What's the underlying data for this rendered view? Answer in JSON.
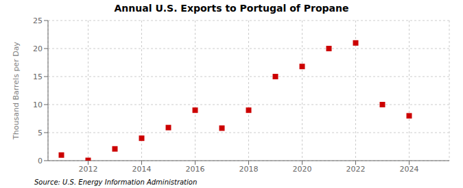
{
  "chart_data": {
    "type": "scatter",
    "title": "Annual U.S. Exports to Portugal of Propane",
    "ylabel": "Thousand Barrels per Day",
    "annotation": "Source: U.S. Energy Information Administration",
    "x": [
      2011,
      2012,
      2013,
      2014,
      2015,
      2016,
      2017,
      2018,
      2019,
      2020,
      2021,
      2022,
      2023,
      2024
    ],
    "values": [
      1.0,
      0.05,
      2.1,
      4.0,
      5.9,
      9.0,
      5.8,
      9.0,
      15.0,
      16.8,
      20.0,
      21.0,
      10.0,
      8.0
    ],
    "color": "#cc0000",
    "marker": "square",
    "xlim": [
      2010.5,
      2025.5
    ],
    "xticks": [
      2012,
      2014,
      2016,
      2018,
      2020,
      2022,
      2024
    ],
    "ylim": [
      0,
      25
    ],
    "yticks": [
      0,
      5,
      10,
      15,
      20,
      25
    ],
    "grid": true
  }
}
